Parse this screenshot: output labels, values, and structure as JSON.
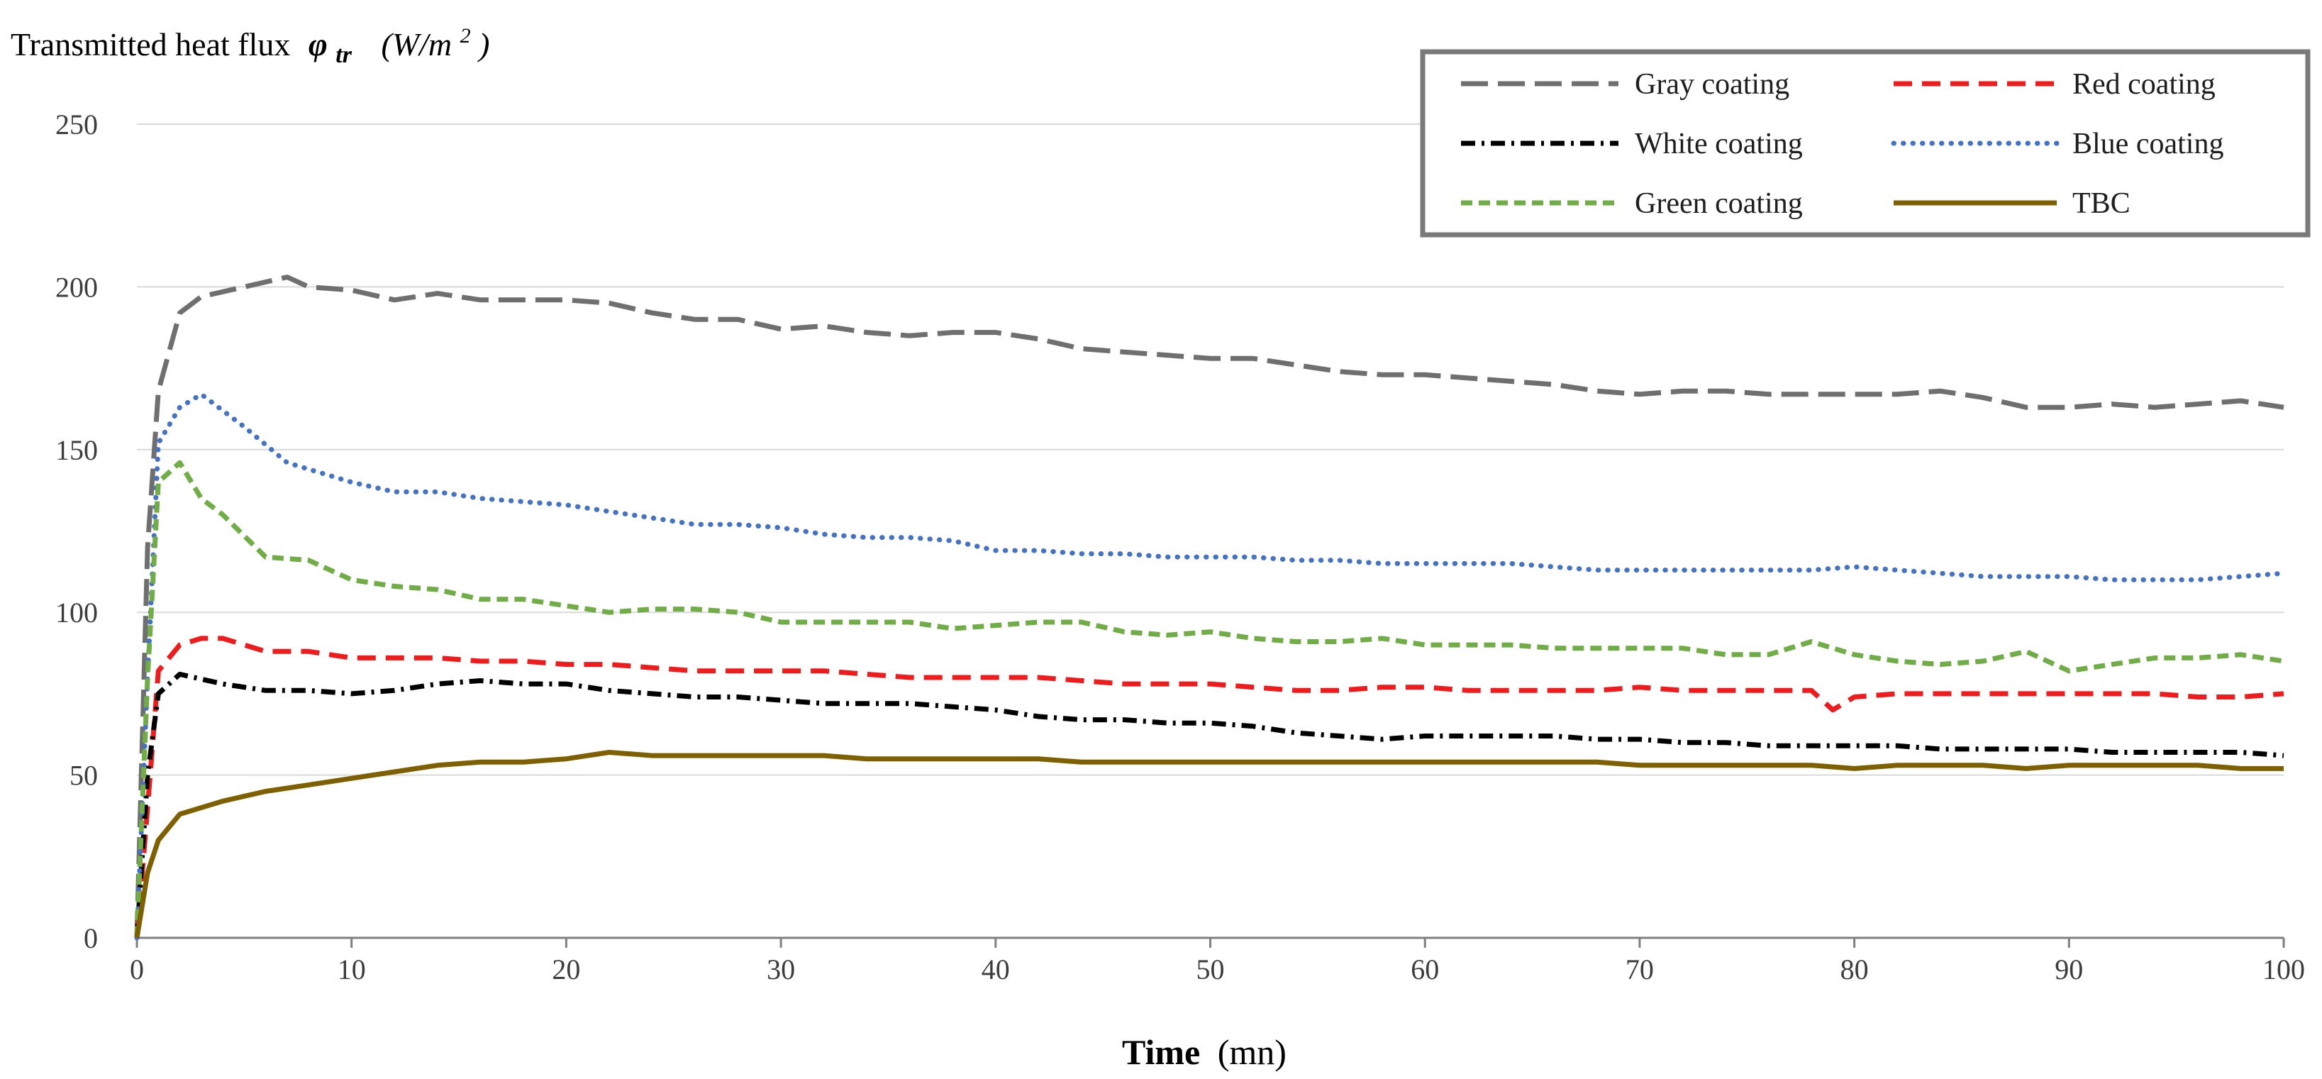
{
  "chart_data": {
    "type": "line",
    "title": "",
    "ylabel_main": "Transmitted heat flux",
    "ylabel_symbol": "φ",
    "ylabel_sub": "tr",
    "ylabel_unit": "(W/m",
    "ylabel_unit_exp": "2",
    "ylabel_unit_close": ")",
    "xlabel_main": "Time",
    "xlabel_unit": "(mn)",
    "xlim": [
      0,
      100
    ],
    "ylim": [
      0,
      250
    ],
    "xticks": [
      0,
      10,
      20,
      30,
      40,
      50,
      60,
      70,
      80,
      90,
      100
    ],
    "yticks": [
      0,
      50,
      100,
      150,
      200,
      250
    ],
    "grid": true,
    "legend_position": "top-right",
    "series": [
      {
        "name": "Gray coating",
        "color": "#6f6f6f",
        "style": "long-dash",
        "x": [
          0,
          0.5,
          1,
          2,
          3,
          5,
          7,
          8,
          10,
          12,
          14,
          16,
          18,
          20,
          22,
          24,
          26,
          28,
          30,
          32,
          34,
          36,
          38,
          40,
          42,
          44,
          46,
          48,
          50,
          52,
          54,
          56,
          58,
          60,
          62,
          64,
          66,
          68,
          70,
          72,
          74,
          76,
          78,
          80,
          82,
          84,
          86,
          88,
          90,
          92,
          94,
          96,
          98,
          100
        ],
        "values": [
          0,
          120,
          168,
          192,
          197,
          200,
          203,
          200,
          199,
          196,
          198,
          196,
          196,
          196,
          195,
          192,
          190,
          190,
          187,
          188,
          186,
          185,
          186,
          186,
          184,
          181,
          180,
          179,
          178,
          178,
          176,
          174,
          173,
          173,
          172,
          171,
          170,
          168,
          167,
          168,
          168,
          167,
          167,
          167,
          167,
          168,
          166,
          163,
          163,
          164,
          163,
          164,
          165,
          163
        ]
      },
      {
        "name": "Red coating",
        "color": "#ee1c1c",
        "style": "dash",
        "x": [
          0,
          0.5,
          1,
          2,
          3,
          4,
          6,
          8,
          10,
          12,
          14,
          16,
          18,
          20,
          22,
          24,
          26,
          28,
          30,
          32,
          34,
          36,
          38,
          40,
          42,
          44,
          46,
          48,
          50,
          52,
          54,
          56,
          58,
          60,
          62,
          64,
          66,
          68,
          70,
          72,
          74,
          76,
          78,
          79,
          80,
          82,
          84,
          86,
          88,
          90,
          92,
          94,
          96,
          98,
          100
        ],
        "values": [
          0,
          40,
          82,
          90,
          92,
          92,
          88,
          88,
          86,
          86,
          86,
          85,
          85,
          84,
          84,
          83,
          82,
          82,
          82,
          82,
          81,
          80,
          80,
          80,
          80,
          79,
          78,
          78,
          78,
          77,
          76,
          76,
          77,
          77,
          76,
          76,
          76,
          76,
          77,
          76,
          76,
          76,
          76,
          70,
          74,
          75,
          75,
          75,
          75,
          75,
          75,
          75,
          74,
          74,
          75
        ]
      },
      {
        "name": "White coating",
        "color": "#000000",
        "style": "dash-dot",
        "x": [
          0,
          0.5,
          1,
          2,
          4,
          6,
          8,
          10,
          12,
          14,
          16,
          18,
          20,
          22,
          24,
          26,
          28,
          30,
          32,
          34,
          36,
          38,
          40,
          42,
          44,
          46,
          48,
          50,
          52,
          54,
          56,
          58,
          60,
          62,
          64,
          66,
          68,
          70,
          72,
          74,
          76,
          78,
          80,
          82,
          84,
          86,
          88,
          90,
          92,
          94,
          96,
          98,
          100
        ],
        "values": [
          0,
          50,
          75,
          81,
          78,
          76,
          76,
          75,
          76,
          78,
          79,
          78,
          78,
          76,
          75,
          74,
          74,
          73,
          72,
          72,
          72,
          71,
          70,
          68,
          67,
          67,
          66,
          66,
          65,
          63,
          62,
          61,
          62,
          62,
          62,
          62,
          61,
          61,
          60,
          60,
          59,
          59,
          59,
          59,
          58,
          58,
          58,
          58,
          57,
          57,
          57,
          57,
          56
        ]
      },
      {
        "name": "Blue coating",
        "color": "#4472c4",
        "style": "dot",
        "x": [
          0,
          0.5,
          1,
          2,
          3,
          5,
          7,
          10,
          12,
          14,
          16,
          18,
          20,
          22,
          24,
          26,
          28,
          30,
          32,
          34,
          36,
          38,
          40,
          42,
          44,
          46,
          48,
          50,
          52,
          54,
          56,
          58,
          60,
          62,
          64,
          66,
          68,
          70,
          72,
          74,
          76,
          78,
          80,
          82,
          84,
          86,
          88,
          90,
          92,
          94,
          96,
          98,
          100
        ],
        "values": [
          0,
          80,
          152,
          163,
          167,
          157,
          146,
          140,
          137,
          137,
          135,
          134,
          133,
          131,
          129,
          127,
          127,
          126,
          124,
          123,
          123,
          122,
          119,
          119,
          118,
          118,
          117,
          117,
          117,
          116,
          116,
          115,
          115,
          115,
          115,
          114,
          113,
          113,
          113,
          113,
          113,
          113,
          114,
          113,
          112,
          111,
          111,
          111,
          110,
          110,
          110,
          111,
          112
        ]
      },
      {
        "name": "Green coating",
        "color": "#70ad47",
        "style": "short-dash",
        "x": [
          0,
          0.5,
          1,
          2,
          3,
          4,
          6,
          8,
          10,
          12,
          14,
          16,
          18,
          20,
          22,
          24,
          26,
          28,
          30,
          32,
          34,
          36,
          38,
          40,
          42,
          44,
          46,
          48,
          50,
          52,
          54,
          56,
          58,
          60,
          62,
          64,
          66,
          68,
          70,
          72,
          74,
          76,
          78,
          80,
          82,
          84,
          86,
          88,
          90,
          92,
          94,
          96,
          98,
          100
        ],
        "values": [
          0,
          80,
          140,
          146,
          135,
          130,
          117,
          116,
          110,
          108,
          107,
          104,
          104,
          102,
          100,
          101,
          101,
          100,
          97,
          97,
          97,
          97,
          95,
          96,
          97,
          97,
          94,
          93,
          94,
          92,
          91,
          91,
          92,
          90,
          90,
          90,
          89,
          89,
          89,
          89,
          87,
          87,
          91,
          87,
          85,
          84,
          85,
          88,
          82,
          84,
          86,
          86,
          87,
          85
        ]
      },
      {
        "name": "TBC",
        "color": "#7f6000",
        "style": "solid",
        "x": [
          0,
          0.5,
          1,
          2,
          4,
          6,
          8,
          10,
          12,
          14,
          16,
          18,
          20,
          22,
          24,
          26,
          28,
          30,
          32,
          34,
          36,
          38,
          40,
          42,
          44,
          46,
          48,
          50,
          52,
          54,
          56,
          58,
          60,
          62,
          64,
          66,
          68,
          70,
          72,
          74,
          76,
          78,
          80,
          82,
          84,
          86,
          88,
          90,
          92,
          94,
          96,
          98,
          100
        ],
        "values": [
          0,
          20,
          30,
          38,
          42,
          45,
          47,
          49,
          51,
          53,
          54,
          54,
          55,
          57,
          56,
          56,
          56,
          56,
          56,
          55,
          55,
          55,
          55,
          55,
          54,
          54,
          54,
          54,
          54,
          54,
          54,
          54,
          54,
          54,
          54,
          54,
          54,
          53,
          53,
          53,
          53,
          53,
          52,
          53,
          53,
          53,
          52,
          53,
          53,
          53,
          53,
          52,
          52
        ]
      }
    ]
  }
}
